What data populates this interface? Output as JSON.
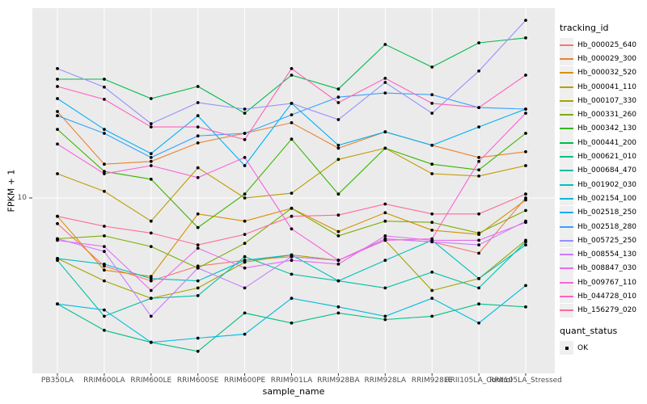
{
  "figure": {
    "y_axis_title": "FPKM + 1",
    "x_axis_title": "sample_name",
    "y_tick_label": "10",
    "legend": {
      "tracking_title": "tracking_id",
      "quant_title": "quant_status",
      "quant_items": [
        {
          "label": "OK",
          "marker": "black-square-point"
        }
      ]
    },
    "colors": {
      "panel_bg": "#EBEBEB",
      "gridline": "#FFFFFF",
      "tick_mark": "#333333",
      "tick_text": "#4D4D4D",
      "point": "#000000",
      "legend_key_bg": "#EFEFEF"
    }
  },
  "chart_data": {
    "type": "line",
    "x_type": "categorical",
    "title": "",
    "xlabel": "sample_name",
    "ylabel": "FPKM + 1",
    "y_scale": "log10",
    "y_ticks": [
      10
    ],
    "ylim": [
      1.9,
      65
    ],
    "grid": true,
    "legend_position": "right",
    "point_marker": "black-dot",
    "categories": [
      "PB350LA",
      "RRIM600LA",
      "RRIM600LE",
      "RRIM600SE",
      "RRIM600PE",
      "RRIM901LA",
      "RRIM928BA",
      "RRIM928LA",
      "RRIM928LE",
      "RRII105LA_Control",
      "RRII105LA_Stressed"
    ],
    "series": [
      {
        "name": "Hb_000025_640",
        "color": "#F8766D",
        "values": [
          7.7,
          5.0,
          4.3,
          5.0,
          5.3,
          5.5,
          5.3,
          6.6,
          6.4,
          5.7,
          10.0
        ]
      },
      {
        "name": "Hb_000029_300",
        "color": "#EA8331",
        "values": [
          24.1,
          14.1,
          14.5,
          17.5,
          19.3,
          21.5,
          16.6,
          19.6,
          17.1,
          15.1,
          16.0
        ]
      },
      {
        "name": "Hb_000032_520",
        "color": "#D89000",
        "values": [
          8.3,
          4.8,
          4.5,
          8.5,
          7.9,
          9.0,
          7.1,
          8.6,
          7.2,
          6.9,
          9.8
        ]
      },
      {
        "name": "Hb_000041_110",
        "color": "#C09B00",
        "values": [
          12.8,
          10.7,
          7.9,
          13.6,
          10.0,
          10.5,
          14.8,
          16.6,
          12.8,
          12.5,
          13.9
        ]
      },
      {
        "name": "Hb_000107_330",
        "color": "#A3A500",
        "values": [
          5.4,
          4.3,
          3.6,
          4.0,
          5.2,
          5.6,
          5.3,
          6.5,
          3.9,
          4.4,
          6.5
        ]
      },
      {
        "name": "Hb_000331_260",
        "color": "#7CAE00",
        "values": [
          6.6,
          6.8,
          6.1,
          4.9,
          6.3,
          9.0,
          6.8,
          7.9,
          7.8,
          7.0,
          8.8
        ]
      },
      {
        "name": "Hb_000342_130",
        "color": "#39B600",
        "values": [
          20.1,
          13.1,
          12.1,
          7.4,
          10.4,
          18.2,
          10.4,
          16.6,
          14.1,
          13.3,
          19.3
        ]
      },
      {
        "name": "Hb_000441_200",
        "color": "#00BB4E",
        "values": [
          33.5,
          33.5,
          27.5,
          31.1,
          23.7,
          34.9,
          30.3,
          47.7,
          37.9,
          48.5,
          51.0
        ]
      },
      {
        "name": "Hb_000621_010",
        "color": "#00C087",
        "values": [
          3.4,
          2.6,
          2.3,
          2.1,
          3.1,
          2.8,
          3.1,
          2.9,
          3.0,
          3.4,
          3.3
        ]
      },
      {
        "name": "Hb_000684_470",
        "color": "#00C1A3",
        "values": [
          5.3,
          3.0,
          3.6,
          3.7,
          5.5,
          4.6,
          4.3,
          4.0,
          4.7,
          4.0,
          6.4
        ]
      },
      {
        "name": "Hb_001902_030",
        "color": "#00BFC4",
        "values": [
          5.4,
          5.1,
          4.4,
          4.3,
          5.3,
          5.6,
          4.3,
          5.3,
          6.5,
          4.4,
          6.2
        ]
      },
      {
        "name": "Hb_002154_100",
        "color": "#00BAE0",
        "values": [
          3.4,
          3.2,
          2.3,
          2.4,
          2.5,
          3.6,
          3.3,
          3.0,
          3.6,
          2.8,
          4.1
        ]
      },
      {
        "name": "Hb_002518_250",
        "color": "#00B0F6",
        "values": [
          27.5,
          20.1,
          15.7,
          23.1,
          13.9,
          26.2,
          17.1,
          19.6,
          17.1,
          20.6,
          24.7
        ]
      },
      {
        "name": "Hb_002518_280",
        "color": "#35A2FF",
        "values": [
          23.1,
          19.3,
          15.1,
          18.8,
          19.3,
          23.3,
          27.9,
          29.1,
          28.6,
          25.1,
          24.7
        ]
      },
      {
        "name": "Hb_005725_250",
        "color": "#9590FF",
        "values": [
          37.3,
          30.9,
          21.3,
          26.4,
          24.7,
          26.2,
          22.2,
          32.4,
          23.7,
          36.4,
          61.0
        ]
      },
      {
        "name": "Hb_008554_130",
        "color": "#C77CFF",
        "values": [
          6.6,
          5.8,
          3.0,
          4.9,
          4.0,
          5.5,
          5.3,
          6.6,
          6.4,
          6.2,
          7.9
        ]
      },
      {
        "name": "Hb_008847_030",
        "color": "#E76BF3",
        "values": [
          6.5,
          6.1,
          3.9,
          6.0,
          4.9,
          5.3,
          5.1,
          6.8,
          6.5,
          6.5,
          7.8
        ]
      },
      {
        "name": "Hb_009767_110",
        "color": "#FA62DB",
        "values": [
          17.3,
          12.8,
          13.9,
          12.3,
          15.1,
          7.3,
          5.3,
          6.5,
          6.6,
          14.5,
          23.7
        ]
      },
      {
        "name": "Hb_044728_010",
        "color": "#FF62BC",
        "values": [
          31.1,
          27.3,
          20.6,
          20.6,
          18.1,
          37.3,
          26.4,
          33.8,
          26.2,
          25.1,
          34.9
        ]
      },
      {
        "name": "Hb_156279_020",
        "color": "#FF6A98",
        "values": [
          8.3,
          7.5,
          7.0,
          6.2,
          6.9,
          8.3,
          8.4,
          9.4,
          8.5,
          8.5,
          10.4
        ]
      }
    ]
  }
}
